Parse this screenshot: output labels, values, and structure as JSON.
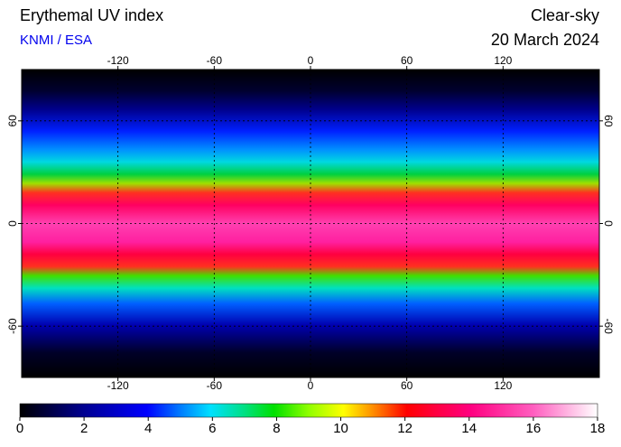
{
  "chart_data": {
    "type": "map",
    "title": "Erythemal UV index",
    "subtitle": "KNMI / ESA",
    "right_title": "Clear-sky",
    "date": "20 March 2024",
    "xlim": [
      -180,
      180
    ],
    "xticks": [
      -120,
      -60,
      0,
      60,
      120
    ],
    "ylim": [
      -90,
      90
    ],
    "yticks": [
      -60,
      0,
      60
    ],
    "grid": true,
    "colorbar": {
      "lim": [
        0,
        18
      ],
      "ticks": [
        0,
        2,
        4,
        6,
        8,
        10,
        12,
        14,
        16,
        18
      ]
    }
  }
}
